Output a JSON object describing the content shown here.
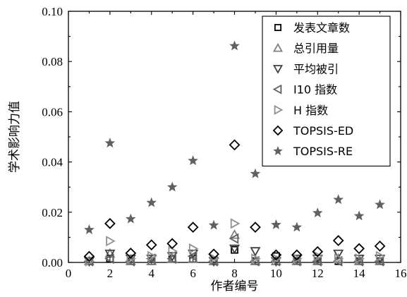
{
  "chart_data": {
    "type": "scatter",
    "xlabel": "作者编号",
    "ylabel": "学术影响力值",
    "xlim": [
      0,
      16
    ],
    "ylim": [
      0,
      0.1
    ],
    "xticks": [
      "0",
      "2",
      "4",
      "6",
      "8",
      "10",
      "12",
      "14",
      "16"
    ],
    "yticks": [
      "0.00",
      "0.02",
      "0.04",
      "0.06",
      "0.08",
      "0.10"
    ],
    "legend_position": "top-right",
    "grid": false,
    "x": [
      1,
      2,
      3,
      4,
      5,
      6,
      7,
      8,
      9,
      10,
      11,
      12,
      13,
      14,
      15
    ],
    "series": [
      {
        "name": "发表文章数",
        "marker": "square",
        "color": "#000000",
        "values": [
          0.0005,
          0.0015,
          0.0005,
          0.0005,
          0.0015,
          0.0015,
          0.0005,
          0.005,
          0.0005,
          0.0025,
          0.0005,
          0.0005,
          0.0005,
          0.0005,
          0.0005
        ]
      },
      {
        "name": "总引用量",
        "marker": "triangle-up",
        "color": "#808080",
        "values": [
          0.0005,
          0.0035,
          0.0005,
          0.0005,
          0.0015,
          0.0015,
          0.0005,
          0.011,
          0.0005,
          0.0005,
          0.0005,
          0.0005,
          0.0015,
          0.0005,
          0.0005
        ]
      },
      {
        "name": "平均被引",
        "marker": "triangle-down",
        "color": "#404040",
        "values": [
          0.0005,
          0.0035,
          0.0015,
          0.0015,
          0.0025,
          0.0035,
          0.0005,
          0.0055,
          0.0045,
          0.0005,
          0.0015,
          0.0015,
          0.0035,
          0.0015,
          0.0015
        ]
      },
      {
        "name": "I10 指数",
        "marker": "triangle-left",
        "color": "#606060",
        "values": [
          0.0005,
          0.0015,
          0.0005,
          0.0015,
          0.0015,
          0.0025,
          0.0005,
          0.0095,
          0.0005,
          0.0005,
          0.0005,
          0.0005,
          0.0005,
          0.0005,
          0.0005
        ]
      },
      {
        "name": "H 指数",
        "marker": "triangle-right",
        "color": "#909090",
        "values": [
          0.0005,
          0.0085,
          0.0015,
          0.0025,
          0.0045,
          0.0055,
          0.0015,
          0.0155,
          0.0015,
          0.0015,
          0.0015,
          0.0025,
          0.0015,
          0.0015,
          0.0025
        ]
      },
      {
        "name": "TOPSIS-ED",
        "marker": "diamond",
        "color": "#000000",
        "values": [
          0.0024,
          0.0155,
          0.0037,
          0.007,
          0.0075,
          0.014,
          0.0033,
          0.0468,
          0.014,
          0.003,
          0.003,
          0.0043,
          0.0087,
          0.0055,
          0.0065
        ]
      },
      {
        "name": "TOPSIS-RE",
        "marker": "star",
        "color": "#606060",
        "values": [
          0.013,
          0.0475,
          0.0173,
          0.0238,
          0.03,
          0.0405,
          0.0148,
          0.0862,
          0.0353,
          0.015,
          0.014,
          0.0197,
          0.025,
          0.0185,
          0.023
        ]
      }
    ]
  }
}
